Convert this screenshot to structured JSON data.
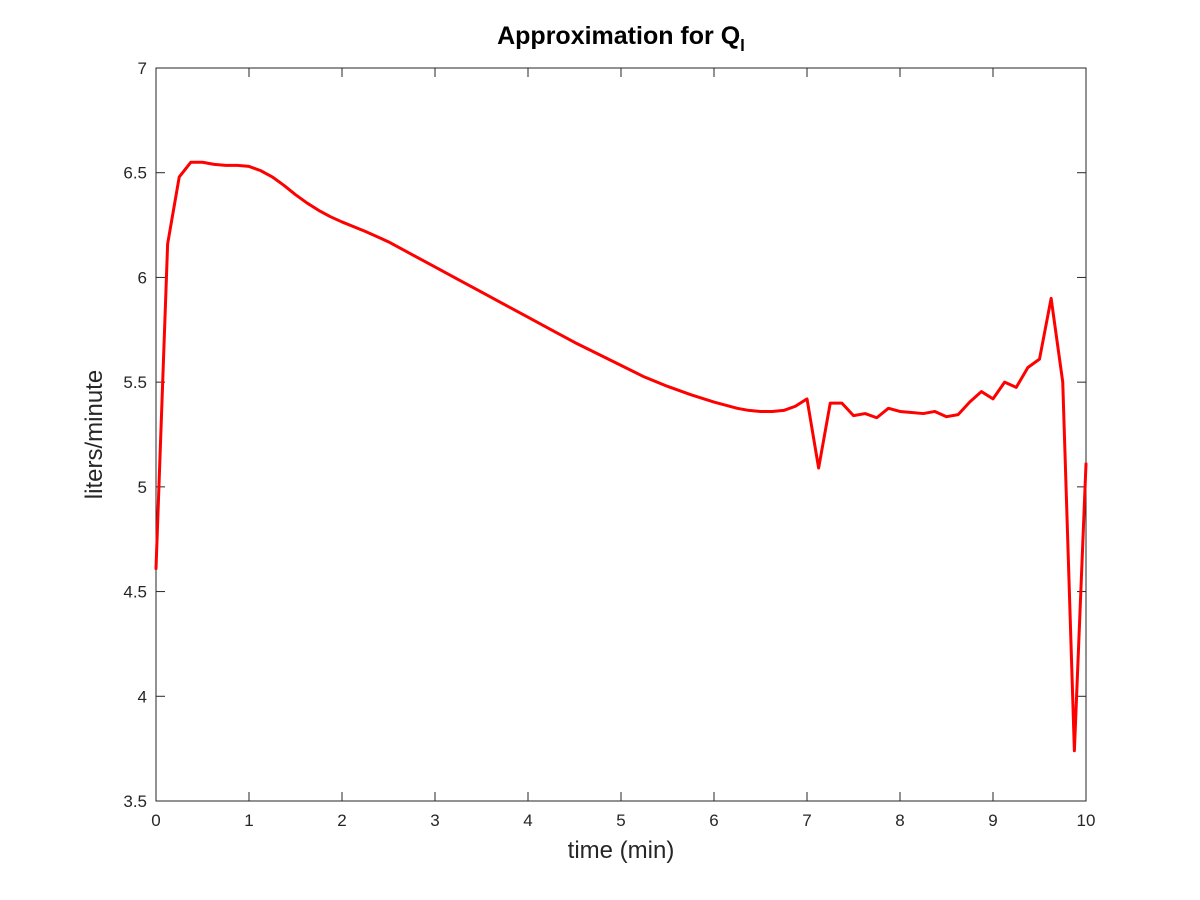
{
  "chart_data": {
    "type": "line",
    "title": "Approximation for Q",
    "title_subscript": "l",
    "xlabel": "time (min)",
    "ylabel": "liters/minute",
    "xlim": [
      0,
      10
    ],
    "ylim": [
      3.5,
      7
    ],
    "xticks": [
      "0",
      "1",
      "2",
      "3",
      "4",
      "5",
      "6",
      "7",
      "8",
      "9",
      "10"
    ],
    "yticks": [
      "3.5",
      "4",
      "4.5",
      "5",
      "5.5",
      "6",
      "6.5",
      "7"
    ],
    "grid": false,
    "box": true,
    "series": [
      {
        "color": "#ff0000",
        "x": [
          0,
          0.125,
          0.25,
          0.375,
          0.5,
          0.625,
          0.75,
          0.875,
          1.0,
          1.125,
          1.25,
          1.375,
          1.5,
          1.625,
          1.75,
          1.875,
          2.0,
          2.25,
          2.5,
          2.75,
          3.0,
          3.25,
          3.5,
          3.75,
          4.0,
          4.25,
          4.5,
          4.75,
          5.0,
          5.25,
          5.5,
          5.75,
          6.0,
          6.125,
          6.25,
          6.375,
          6.5,
          6.625,
          6.75,
          6.875,
          7.0,
          7.125,
          7.25,
          7.375,
          7.5,
          7.625,
          7.75,
          7.875,
          8.0,
          8.125,
          8.25,
          8.375,
          8.5,
          8.625,
          8.75,
          8.875,
          9.0,
          9.125,
          9.25,
          9.375,
          9.5,
          9.625,
          9.75,
          9.875,
          10.0
        ],
        "y": [
          4.61,
          6.16,
          6.48,
          6.55,
          6.55,
          6.54,
          6.535,
          6.535,
          6.53,
          6.51,
          6.48,
          6.44,
          6.395,
          6.355,
          6.32,
          6.29,
          6.265,
          6.22,
          6.17,
          6.11,
          6.05,
          5.99,
          5.93,
          5.87,
          5.81,
          5.75,
          5.69,
          5.635,
          5.58,
          5.525,
          5.48,
          5.44,
          5.405,
          5.39,
          5.375,
          5.365,
          5.36,
          5.36,
          5.365,
          5.385,
          5.42,
          5.09,
          5.4,
          5.4,
          5.34,
          5.35,
          5.33,
          5.375,
          5.36,
          5.355,
          5.35,
          5.36,
          5.335,
          5.345,
          5.405,
          5.455,
          5.42,
          5.5,
          5.475,
          5.57,
          5.61,
          5.9,
          5.5,
          3.74,
          5.11
        ]
      }
    ]
  }
}
